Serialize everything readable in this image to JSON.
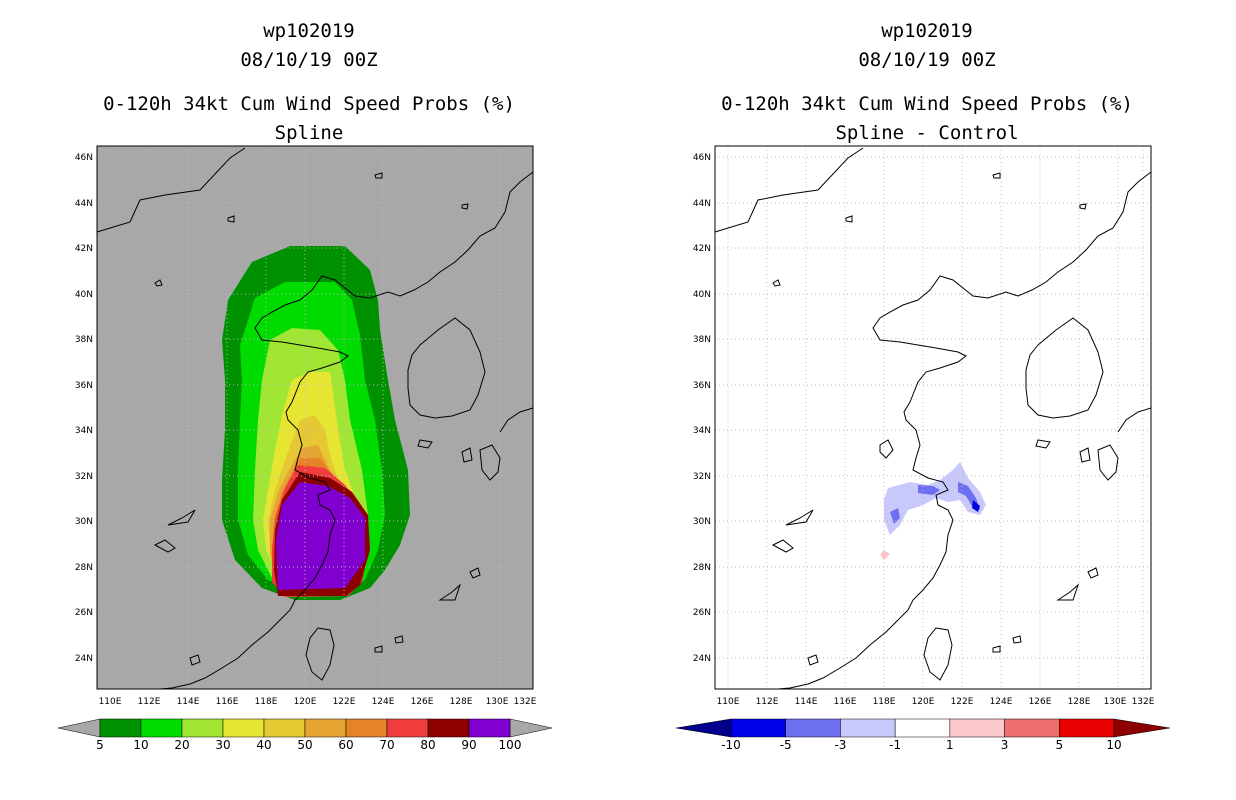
{
  "panels": [
    {
      "title_storm": "wp102019",
      "title_time": "08/10/19 00Z",
      "title_product": "0-120h 34kt Cum Wind Speed Probs (%)",
      "title_sub": "Spline"
    },
    {
      "title_storm": "wp102019",
      "title_time": "08/10/19 00Z",
      "title_product": "0-120h 34kt Cum Wind Speed Probs (%)",
      "title_sub": "Spline - Control"
    }
  ],
  "map": {
    "lat_labels": [
      "46N",
      "44N",
      "42N",
      "40N",
      "38N",
      "36N",
      "34N",
      "32N",
      "30N",
      "28N",
      "26N",
      "24N"
    ],
    "lon_labels": [
      "110E",
      "112E",
      "114E",
      "116E",
      "118E",
      "120E",
      "122E",
      "124E",
      "126E",
      "128E",
      "130E",
      "132E"
    ],
    "background_left": "#a8a8a8",
    "background_right": "#ffffff"
  },
  "colorbar_left": {
    "labels": [
      "5",
      "10",
      "20",
      "30",
      "40",
      "50",
      "60",
      "70",
      "80",
      "90",
      "100"
    ],
    "colors": [
      "#009100",
      "#00dc00",
      "#a0e632",
      "#e6e632",
      "#e6c832",
      "#e6a532",
      "#e68228",
      "#f03c3c",
      "#8c0000",
      "#8000d0"
    ],
    "end_color": "#a8a8a8"
  },
  "colorbar_right": {
    "labels": [
      "-10",
      "-5",
      "-3",
      "-1",
      "1",
      "3",
      "5",
      "10"
    ],
    "colors": [
      "#0000e6",
      "#6e6ef0",
      "#c8c8fa",
      "#ffffff",
      "#fac8c8",
      "#f06e6e",
      "#e60000"
    ],
    "end_low": "#00008c",
    "end_high": "#8c0000"
  }
}
